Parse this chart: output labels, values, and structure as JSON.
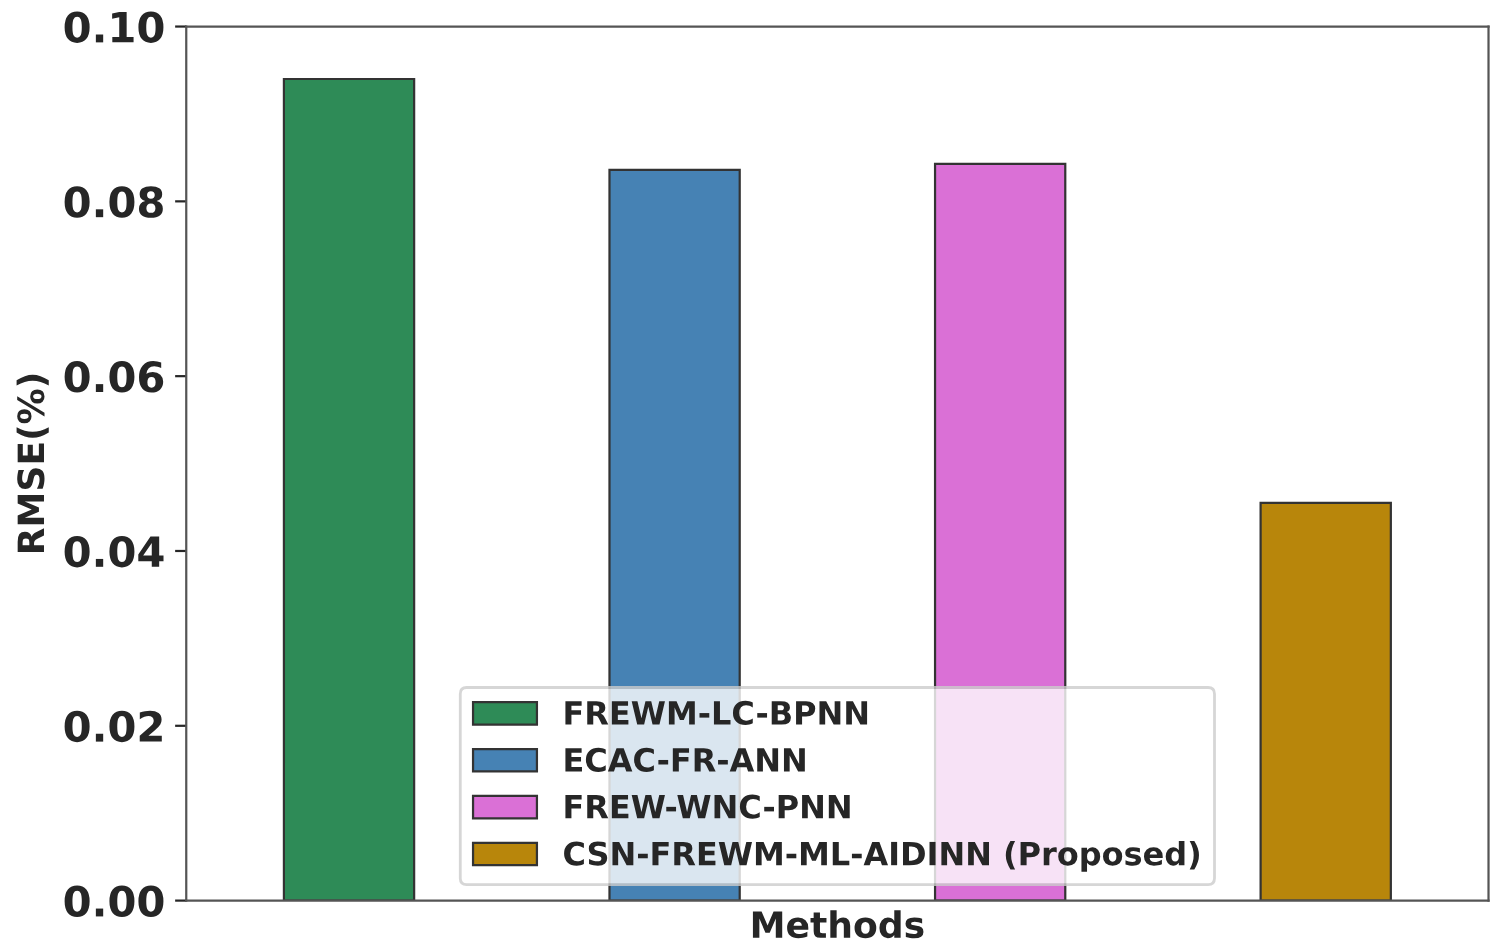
{
  "chart_data": {
    "type": "bar",
    "xlabel": "Methods",
    "ylabel": "RMSE(%)",
    "categories": [
      null,
      null,
      null,
      null
    ],
    "series": [
      {
        "name": "FREWM-LC-BPNN",
        "color": "#2e8b57",
        "values": [
          0.094,
          null,
          null,
          null
        ]
      },
      {
        "name": "ECAC-FR-ANN",
        "color": "#4682b4",
        "values": [
          null,
          0.0836,
          null,
          null
        ]
      },
      {
        "name": "FREW-WNC-PNN",
        "color": "#da70d6",
        "values": [
          null,
          null,
          0.0843,
          null
        ]
      },
      {
        "name": "CSN-FREWM-ML-AIDINN (Proposed)",
        "color": "#b8860b",
        "values": [
          null,
          null,
          null,
          0.0455
        ]
      }
    ],
    "ylim": [
      0,
      0.1
    ],
    "yticks": [
      {
        "value": 0,
        "label": "0.00"
      },
      {
        "value": 0.02,
        "label": "0.02"
      },
      {
        "value": 0.04,
        "label": "0.04"
      },
      {
        "value": 0.06,
        "label": "0.06"
      },
      {
        "value": 0.08,
        "label": "0.08"
      },
      {
        "value": 0.1,
        "label": "0.10"
      }
    ],
    "legend": "bottom",
    "grid": false
  }
}
